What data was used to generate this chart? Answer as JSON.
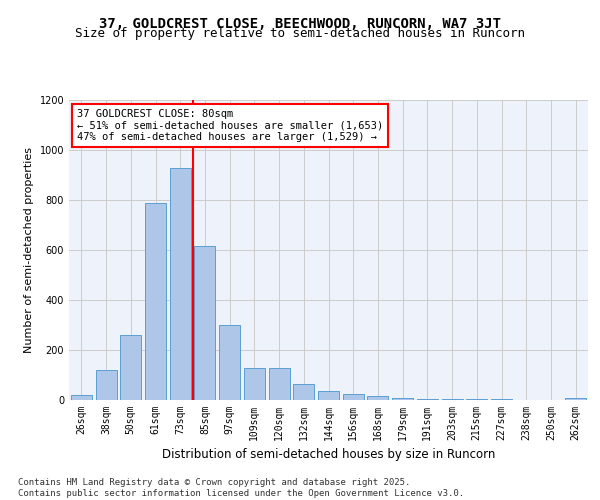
{
  "title1": "37, GOLDCREST CLOSE, BEECHWOOD, RUNCORN, WA7 3JT",
  "title2": "Size of property relative to semi-detached houses in Runcorn",
  "xlabel": "Distribution of semi-detached houses by size in Runcorn",
  "ylabel": "Number of semi-detached properties",
  "categories": [
    "26sqm",
    "38sqm",
    "50sqm",
    "61sqm",
    "73sqm",
    "85sqm",
    "97sqm",
    "109sqm",
    "120sqm",
    "132sqm",
    "144sqm",
    "156sqm",
    "168sqm",
    "179sqm",
    "191sqm",
    "203sqm",
    "215sqm",
    "227sqm",
    "238sqm",
    "250sqm",
    "262sqm"
  ],
  "values": [
    20,
    120,
    260,
    790,
    930,
    615,
    300,
    130,
    130,
    65,
    35,
    25,
    15,
    10,
    5,
    5,
    5,
    3,
    2,
    2,
    10
  ],
  "bar_color": "#aec6e8",
  "bar_edgecolor": "#5a9fd4",
  "grid_color": "#cccccc",
  "background_color": "#eef2fa",
  "annotation_text": "37 GOLDCREST CLOSE: 80sqm\n← 51% of semi-detached houses are smaller (1,653)\n47% of semi-detached houses are larger (1,529) →",
  "annotation_box_edgecolor": "red",
  "annotation_box_facecolor": "white",
  "ylim": [
    0,
    1200
  ],
  "yticks": [
    0,
    200,
    400,
    600,
    800,
    1000,
    1200
  ],
  "footer_text": "Contains HM Land Registry data © Crown copyright and database right 2025.\nContains public sector information licensed under the Open Government Licence v3.0.",
  "title1_fontsize": 10,
  "title2_fontsize": 9,
  "xlabel_fontsize": 8.5,
  "ylabel_fontsize": 8,
  "tick_fontsize": 7,
  "annotation_fontsize": 7.5,
  "footer_fontsize": 6.5
}
